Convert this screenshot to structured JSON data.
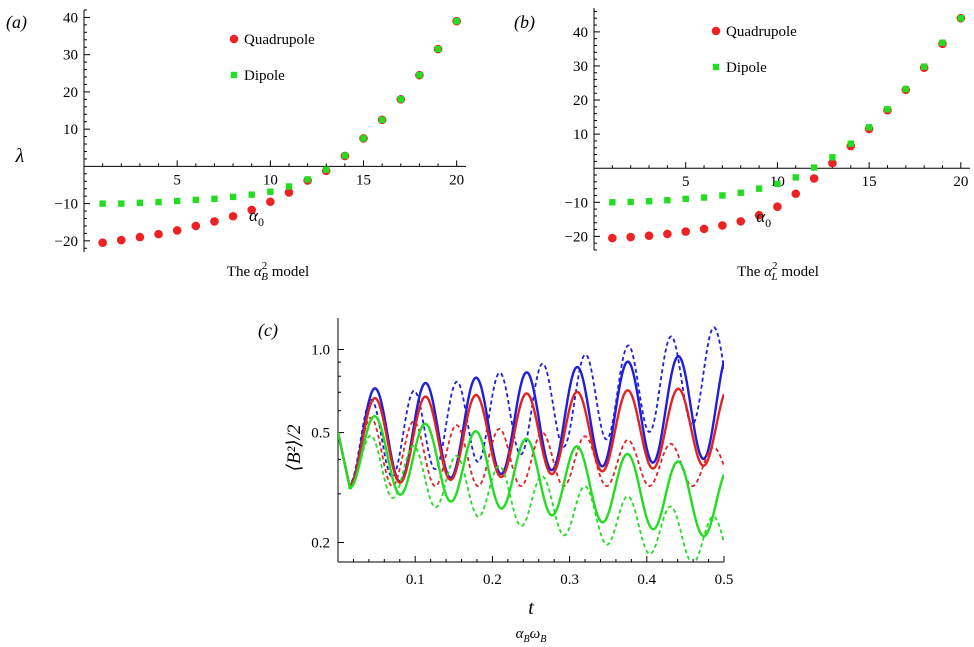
{
  "chart_data": [
    {
      "type": "scatter",
      "panel": "(a)",
      "caption_prefix": "The ",
      "caption_symbol": "α",
      "caption_sup": "2",
      "caption_sub": "B",
      "caption_suffix": " model",
      "ylabel": "λ",
      "annotation": {
        "text": "α",
        "sub": "0",
        "x": 9.5,
        "y": -13
      },
      "xlim": [
        0,
        20.5
      ],
      "ylim": [
        -23,
        42
      ],
      "xticks": [
        5,
        10,
        15,
        20
      ],
      "yticks": [
        -20,
        -10,
        10,
        20,
        30,
        40
      ],
      "legend": "top-center",
      "series": [
        {
          "name": "Quadrupole",
          "color": "#ee2222",
          "x": [
            1,
            2,
            3,
            4,
            5,
            6,
            7,
            8,
            9,
            10,
            11,
            12,
            13,
            14,
            15,
            16,
            17,
            18,
            19,
            20
          ],
          "y": [
            -20.5,
            -19.8,
            -19,
            -18.2,
            -17.2,
            -16,
            -14.8,
            -13.4,
            -11.7,
            -9.5,
            -7,
            -3.8,
            -1.2,
            2.8,
            7.5,
            12.5,
            18,
            24.5,
            31.5,
            39
          ]
        },
        {
          "name": "Dipole",
          "color": "#22dd22",
          "x": [
            1,
            2,
            3,
            4,
            5,
            6,
            7,
            8,
            9,
            10,
            11,
            12,
            13,
            14,
            15,
            16,
            17,
            18,
            19,
            20
          ],
          "y": [
            -10,
            -10,
            -9.8,
            -9.6,
            -9.3,
            -9,
            -8.7,
            -8.2,
            -7.6,
            -6.8,
            -5.4,
            -3.5,
            -0.9,
            2.9,
            7.5,
            12.5,
            18,
            24.5,
            31.5,
            39
          ]
        }
      ]
    },
    {
      "type": "scatter",
      "panel": "(b)",
      "caption_prefix": "The ",
      "caption_symbol": "α",
      "caption_sup": "2",
      "caption_sub": "L",
      "caption_suffix": " model",
      "ylabel": "",
      "annotation": {
        "text": "α",
        "sub": "0",
        "x": 9.5,
        "y": -14
      },
      "xlim": [
        0,
        20.5
      ],
      "ylim": [
        -24,
        47
      ],
      "xticks": [
        5,
        10,
        15,
        20
      ],
      "yticks": [
        -20,
        -10,
        10,
        20,
        30,
        40
      ],
      "legend": "top-center",
      "series": [
        {
          "name": "Quadrupole",
          "color": "#ee2222",
          "x": [
            1,
            2,
            3,
            4,
            5,
            6,
            7,
            8,
            9,
            10,
            11,
            12,
            13,
            14,
            15,
            16,
            17,
            18,
            19,
            20
          ],
          "y": [
            -20.5,
            -20.2,
            -19.8,
            -19.3,
            -18.6,
            -17.8,
            -16.8,
            -15.6,
            -13.8,
            -11.3,
            -7.5,
            -3,
            1.5,
            6.5,
            11.5,
            17,
            23,
            29.5,
            36.5,
            44
          ]
        },
        {
          "name": "Dipole",
          "color": "#22dd22",
          "x": [
            1,
            2,
            3,
            4,
            5,
            6,
            7,
            8,
            9,
            10,
            11,
            12,
            13,
            14,
            15,
            16,
            17,
            18,
            19,
            20
          ],
          "y": [
            -10,
            -9.9,
            -9.7,
            -9.4,
            -9,
            -8.6,
            -8,
            -7.2,
            -6,
            -4.6,
            -2.7,
            0.2,
            3.2,
            7.2,
            12,
            17.3,
            23.2,
            29.8,
            36.8,
            44
          ]
        }
      ]
    },
    {
      "type": "line",
      "panel": "(c)",
      "xlabel": "t",
      "xlabel_sub_a": "α",
      "xlabel_sub_a_sub": "B",
      "xlabel_sub_b": "ω",
      "xlabel_sub_b_sub": "B",
      "ylabel": "⟨B²⟩/2",
      "yscale": "log",
      "xlim": [
        0,
        0.5
      ],
      "ylim": [
        0.17,
        1.3
      ],
      "xticks": [
        0.1,
        0.2,
        0.3,
        0.4,
        0.5
      ],
      "yticks": [
        0.2,
        0.5,
        1.0
      ],
      "ytick_labels": [
        "0.2",
        "0.5",
        "1.0"
      ],
      "series": [
        {
          "color": "#1e1edc",
          "style": "solid",
          "start": 0.5,
          "floor": 0.32,
          "peak": 0.7,
          "amp_growth": 0.17,
          "min_growth": 0.12,
          "period": 0.0655
        },
        {
          "color": "#1e1edc",
          "style": "dashed",
          "start": 0.5,
          "floor": 0.32,
          "peak": 0.62,
          "amp_growth": 0.34,
          "min_growth": 0.28,
          "period": 0.0555
        },
        {
          "color": "#e12323",
          "style": "solid",
          "start": 0.5,
          "floor": 0.32,
          "peak": 0.66,
          "amp_growth": 0.05,
          "min_growth": 0.09,
          "period": 0.0655
        },
        {
          "color": "#e12323",
          "style": "dashed",
          "start": 0.5,
          "floor": 0.32,
          "peak": 0.58,
          "amp_growth": -0.14,
          "min_growth": 0.0,
          "period": 0.0555
        },
        {
          "color": "#22dd22",
          "style": "solid",
          "start": 0.5,
          "floor": 0.32,
          "peak": 0.6,
          "amp_growth": -0.24,
          "min_growth": -0.22,
          "period": 0.0655
        },
        {
          "color": "#22dd22",
          "style": "dashed",
          "start": 0.5,
          "floor": 0.32,
          "peak": 0.52,
          "amp_growth": -0.38,
          "min_growth": -0.35,
          "period": 0.0555
        }
      ]
    }
  ]
}
